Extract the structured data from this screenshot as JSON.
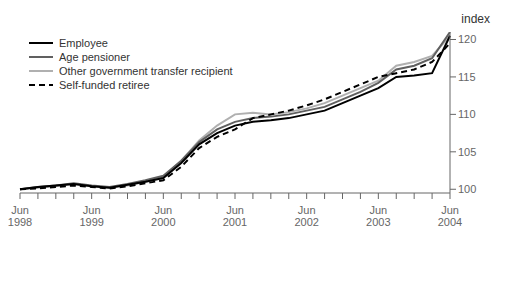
{
  "chart_data": {
    "type": "line",
    "y_label": "index",
    "categories": [
      "Jun\n1998",
      null,
      null,
      null,
      "Jun\n1999",
      null,
      null,
      null,
      "Jun\n2000",
      null,
      null,
      null,
      "Jun\n2001",
      null,
      null,
      null,
      "Jun\n2002",
      null,
      null,
      null,
      "Jun\n2003",
      null,
      null,
      null,
      "Jun\n2004"
    ],
    "series": [
      {
        "name": "Employee",
        "color": "#000000",
        "line_style": "solid",
        "values": [
          100.0,
          100.3,
          100.5,
          100.7,
          100.4,
          100.2,
          100.6,
          101.0,
          101.5,
          103.5,
          106.0,
          107.5,
          108.5,
          109.0,
          109.2,
          109.5,
          110.0,
          110.5,
          111.5,
          112.5,
          113.5,
          115.0,
          115.2,
          115.5,
          120.5
        ]
      },
      {
        "name": "Age pensioner",
        "color": "#606060",
        "line_style": "solid",
        "values": [
          100.0,
          100.3,
          100.5,
          100.8,
          100.5,
          100.3,
          100.7,
          101.2,
          101.8,
          103.8,
          106.3,
          108.0,
          109.0,
          109.5,
          109.7,
          110.0,
          110.5,
          111.0,
          112.0,
          113.0,
          114.2,
          116.0,
          116.5,
          117.5,
          121.0
        ]
      },
      {
        "name": "Other government transfer recipient",
        "color": "#b0b0b0",
        "line_style": "solid",
        "values": [
          100.0,
          100.2,
          100.4,
          100.7,
          100.4,
          100.2,
          100.5,
          101.0,
          101.6,
          103.8,
          106.5,
          108.5,
          110.0,
          110.2,
          110.0,
          110.3,
          110.8,
          111.5,
          112.5,
          113.5,
          114.5,
          116.5,
          117.0,
          117.8,
          120.5
        ]
      },
      {
        "name": "Self-funded retiree",
        "color": "#000000",
        "line_style": "dashed",
        "values": [
          100.0,
          100.1,
          100.3,
          100.5,
          100.3,
          100.1,
          100.4,
          100.8,
          101.2,
          103.0,
          105.5,
          107.0,
          108.0,
          109.5,
          110.0,
          110.5,
          111.2,
          112.0,
          113.0,
          114.0,
          115.0,
          115.5,
          116.0,
          117.0,
          119.5
        ]
      }
    ],
    "ylim": [
      99.5,
      121.0
    ],
    "yticks": [
      100,
      105,
      110,
      115,
      120
    ],
    "legend": "upper left",
    "grid": false
  }
}
